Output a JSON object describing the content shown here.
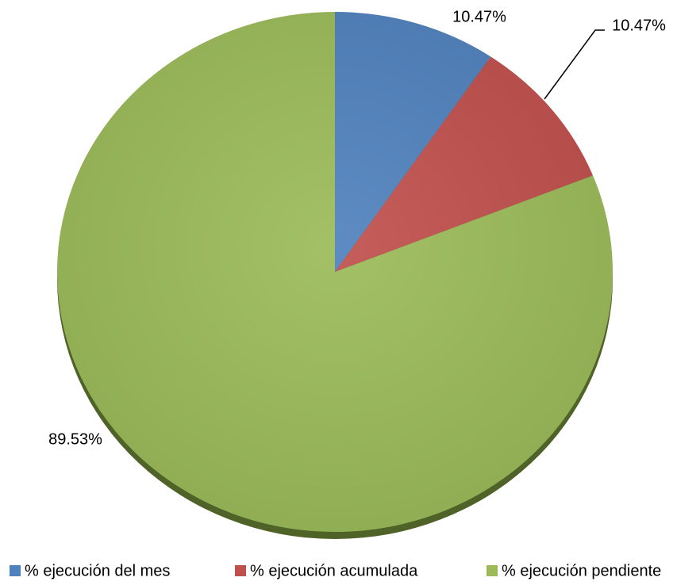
{
  "chart_data": {
    "type": "pie",
    "categories": [
      "% ejecución del mes",
      "% ejecución acumulada",
      "% ejecución pendiente"
    ],
    "values": [
      10.47,
      10.47,
      89.53
    ],
    "value_labels": [
      "10.47%",
      "10.47%",
      "89.53%"
    ],
    "colors": [
      "#4f81bd",
      "#c0504d",
      "#9bbb59"
    ],
    "legend": "bottom"
  }
}
